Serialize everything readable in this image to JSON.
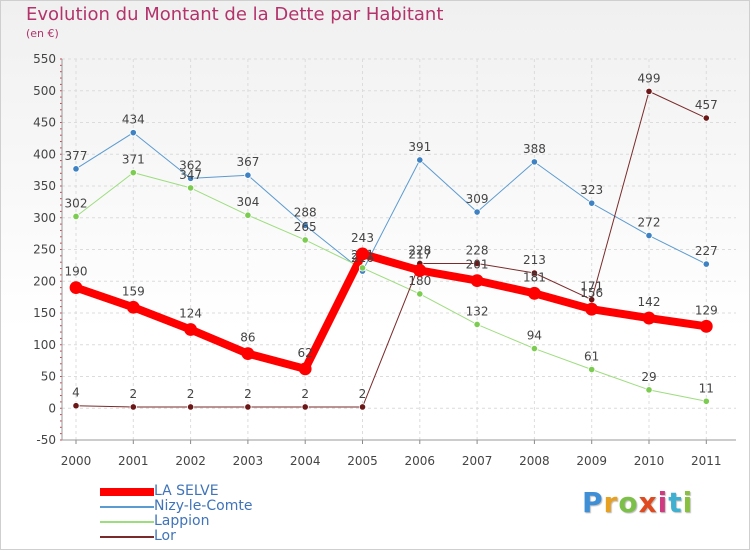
{
  "chart_data": {
    "type": "line",
    "title": "Evolution du Montant de la Dette par Habitant",
    "unit": "(en €)",
    "categories": [
      "2000",
      "2001",
      "2002",
      "2003",
      "2004",
      "2005",
      "2006",
      "2007",
      "2008",
      "2009",
      "2010",
      "2011"
    ],
    "ylim": [
      -50,
      550
    ],
    "yticks": [
      -50,
      0,
      50,
      100,
      150,
      200,
      250,
      300,
      350,
      400,
      450,
      500,
      550
    ],
    "grid": true,
    "legend_position": "bottom-left",
    "series": [
      {
        "name": "Nizy-le-Comte",
        "color": "#5b9bd0",
        "marker": "#3f82c4",
        "width": 1,
        "values": [
          377,
          434,
          362,
          367,
          288,
          216,
          391,
          309,
          388,
          323,
          272,
          227
        ]
      },
      {
        "name": "Lappion",
        "color": "#9ddd7e",
        "marker": "#7ccc52",
        "width": 1,
        "values": [
          302,
          371,
          347,
          304,
          265,
          221,
          180,
          132,
          94,
          61,
          29,
          11
        ]
      },
      {
        "name": "Lor",
        "color": "#7a2a2a",
        "marker": "#6b1717",
        "width": 1,
        "values": [
          4,
          2,
          2,
          2,
          2,
          2,
          228,
          228,
          213,
          171,
          499,
          457
        ]
      },
      {
        "name": "LA SELVE",
        "color": "#ff0000",
        "marker": "#ff0000",
        "width": 8,
        "values": [
          190,
          159,
          124,
          86,
          62,
          243,
          217,
          201,
          181,
          156,
          142,
          129
        ]
      }
    ]
  },
  "legend": [
    {
      "label": "LA SELVE",
      "color": "#ff0000"
    },
    {
      "label": "Nizy-le-Comte",
      "color": "#5b9bd0"
    },
    {
      "label": "Lappion",
      "color": "#9ddd7e"
    },
    {
      "label": "Lor",
      "color": "#7a2a2a"
    }
  ],
  "logo": {
    "letters": [
      "P",
      "r",
      "o",
      "x",
      "i",
      "t",
      "i"
    ],
    "colors": [
      "#3f8fd6",
      "#e8a020",
      "#7cc04a",
      "#e04a20",
      "#d03a80",
      "#3fb0d0",
      "#8ac040"
    ]
  }
}
